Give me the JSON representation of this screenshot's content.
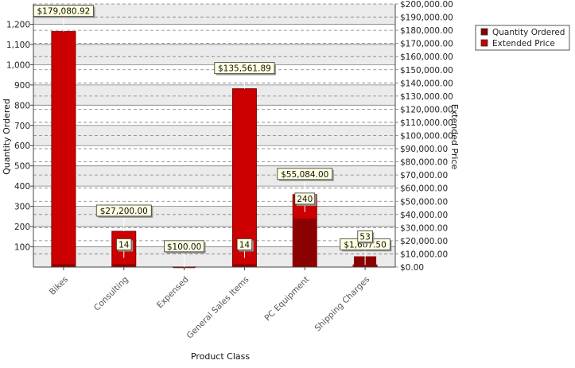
{
  "chart_data": {
    "type": "bar",
    "categories": [
      "Bikes",
      "Consulting",
      "Expensed",
      "General Sales Items",
      "PC Equipment",
      "Shipping Charges"
    ],
    "series": [
      {
        "name": "Quantity Ordered",
        "axis": "left",
        "color": "#8b0000",
        "values": [
          14,
          14,
          1,
          14,
          240,
          53
        ],
        "labels": [
          "",
          "14",
          "",
          "14",
          "240",
          "53"
        ]
      },
      {
        "name": "Extended Price",
        "axis": "right",
        "color": "#cc0000",
        "values": [
          179080.92,
          27200.0,
          100.0,
          135561.89,
          55084.0,
          1607.5
        ],
        "labels": [
          "$179,080.92",
          "$27,200.00",
          "$100.00",
          "$135,561.89",
          "$55,084.00",
          "$1,607.50"
        ]
      }
    ],
    "xlabel": "Product Class",
    "ylabel_left": "Quantity Ordered",
    "ylabel_right": "Extended Price",
    "ylim_left": [
      0,
      1300
    ],
    "ylim_right": [
      0,
      200000
    ],
    "left_ticks": [
      "100",
      "200",
      "300",
      "400",
      "500",
      "600",
      "700",
      "800",
      "900",
      "1,000",
      "1,100",
      "1,200"
    ],
    "right_ticks": [
      "$0.00",
      "$10,000.00",
      "$20,000.00",
      "$30,000.00",
      "$40,000.00",
      "$50,000.00",
      "$60,000.00",
      "$70,000.00",
      "$80,000.00",
      "$90,000.00",
      "$100,000.00",
      "$110,000.00",
      "$120,000.00",
      "$130,000.00",
      "$140,000.00",
      "$150,000.00",
      "$160,000.00",
      "$170,000.00",
      "$180,000.00",
      "$190,000.00",
      "$200,000.00"
    ],
    "grid": true,
    "legend_position": "top-right",
    "colors": {
      "bar_fill": "#cc0000",
      "bar_edge": "#7a0000",
      "band": "#ebebeb",
      "grid": "#7f7f7f",
      "label_bg": "#ffffe1"
    }
  }
}
